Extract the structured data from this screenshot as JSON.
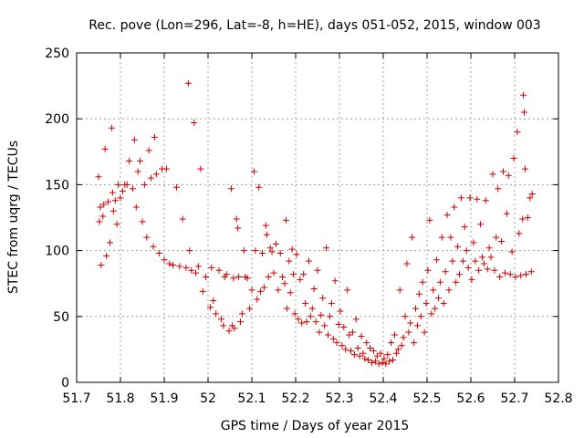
{
  "chart_data": {
    "type": "scatter",
    "title": "Rec. pove (Lon=296, Lat=-8, h=HE), days 051-052, 2015, window 003",
    "xlabel": "GPS time / Days of year 2015",
    "ylabel": "STEC from uqrg / TECUs",
    "xlim": [
      51.7,
      52.8
    ],
    "ylim": [
      0,
      250
    ],
    "x_ticks": [
      "51.7",
      "51.8",
      "51.9",
      "52",
      "52.1",
      "52.2",
      "52.3",
      "52.4",
      "52.5",
      "52.6",
      "52.7",
      "52.8"
    ],
    "y_ticks": [
      "0",
      "50",
      "100",
      "150",
      "200",
      "250"
    ],
    "grid": true,
    "marker": "+",
    "color": "#cc0000",
    "series": [
      {
        "points": [
          [
            51.75,
            156
          ],
          [
            51.752,
            122
          ],
          [
            51.754,
            133
          ],
          [
            51.756,
            89
          ],
          [
            51.76,
            126
          ],
          [
            51.762,
            135
          ],
          [
            51.765,
            177
          ],
          [
            51.768,
            96
          ],
          [
            51.772,
            137
          ],
          [
            51.776,
            106
          ],
          [
            51.78,
            193
          ],
          [
            51.782,
            144
          ],
          [
            51.784,
            130
          ],
          [
            51.788,
            138
          ],
          [
            51.792,
            120
          ],
          [
            51.795,
            150
          ],
          [
            51.8,
            140
          ],
          [
            51.805,
            145
          ],
          [
            51.81,
            150
          ],
          [
            51.815,
            150
          ],
          [
            51.82,
            168
          ],
          [
            51.828,
            147
          ],
          [
            51.832,
            184
          ],
          [
            51.836,
            133
          ],
          [
            51.84,
            160
          ],
          [
            51.845,
            168
          ],
          [
            51.85,
            122
          ],
          [
            51.855,
            150
          ],
          [
            51.86,
            110
          ],
          [
            51.865,
            176
          ],
          [
            51.87,
            155
          ],
          [
            51.875,
            103
          ],
          [
            51.878,
            186
          ],
          [
            51.882,
            158
          ],
          [
            51.888,
            98
          ],
          [
            51.895,
            162
          ],
          [
            51.9,
            93
          ],
          [
            51.905,
            162
          ],
          [
            51.912,
            90
          ],
          [
            51.92,
            89
          ],
          [
            51.928,
            148
          ],
          [
            51.935,
            88
          ],
          [
            51.942,
            124
          ],
          [
            51.95,
            87
          ],
          [
            51.955,
            227
          ],
          [
            51.958,
            100
          ],
          [
            51.962,
            85
          ],
          [
            51.968,
            197
          ],
          [
            51.972,
            83
          ],
          [
            51.978,
            88
          ],
          [
            51.983,
            162
          ],
          [
            51.988,
            69
          ],
          [
            51.995,
            80
          ],
          [
            52.005,
            57
          ],
          [
            52.008,
            87
          ],
          [
            52.012,
            62
          ],
          [
            52.018,
            52
          ],
          [
            52.025,
            85
          ],
          [
            52.03,
            48
          ],
          [
            52.035,
            43
          ],
          [
            52.038,
            80
          ],
          [
            52.042,
            82
          ],
          [
            52.048,
            39
          ],
          [
            52.053,
            147
          ],
          [
            52.055,
            43
          ],
          [
            52.058,
            79
          ],
          [
            52.06,
            41
          ],
          [
            52.065,
            124
          ],
          [
            52.068,
            117
          ],
          [
            52.07,
            80
          ],
          [
            52.074,
            46
          ],
          [
            52.078,
            52
          ],
          [
            52.082,
            100
          ],
          [
            52.085,
            80
          ],
          [
            52.09,
            79
          ],
          [
            52.095,
            56
          ],
          [
            52.1,
            70
          ],
          [
            52.105,
            160
          ],
          [
            52.108,
            100
          ],
          [
            52.112,
            63
          ],
          [
            52.116,
            148
          ],
          [
            52.12,
            69
          ],
          [
            52.124,
            98
          ],
          [
            52.128,
            72
          ],
          [
            52.132,
            119
          ],
          [
            52.134,
            112
          ],
          [
            52.138,
            80
          ],
          [
            52.142,
            102
          ],
          [
            52.146,
            99
          ],
          [
            52.15,
            83
          ],
          [
            52.155,
            105
          ],
          [
            52.16,
            70
          ],
          [
            52.165,
            98
          ],
          [
            52.17,
            80
          ],
          [
            52.175,
            75
          ],
          [
            52.178,
            123
          ],
          [
            52.18,
            56
          ],
          [
            52.185,
            92
          ],
          [
            52.188,
            68
          ],
          [
            52.192,
            101
          ],
          [
            52.195,
            82
          ],
          [
            52.198,
            52
          ],
          [
            52.202,
            97
          ],
          [
            52.206,
            48
          ],
          [
            52.21,
            78
          ],
          [
            52.214,
            45
          ],
          [
            52.218,
            82
          ],
          [
            52.222,
            60
          ],
          [
            52.225,
            46
          ],
          [
            52.23,
            92
          ],
          [
            52.234,
            50
          ],
          [
            52.238,
            56
          ],
          [
            52.242,
            71
          ],
          [
            52.246,
            46
          ],
          [
            52.25,
            85
          ],
          [
            52.254,
            38
          ],
          [
            52.258,
            51
          ],
          [
            52.262,
            64
          ],
          [
            52.266,
            43
          ],
          [
            52.27,
            102
          ],
          [
            52.274,
            36
          ],
          [
            52.278,
            50
          ],
          [
            52.282,
            60
          ],
          [
            52.286,
            33
          ],
          [
            52.29,
            77
          ],
          [
            52.294,
            30
          ],
          [
            52.298,
            44
          ],
          [
            52.302,
            54
          ],
          [
            52.306,
            28
          ],
          [
            52.31,
            42
          ],
          [
            52.314,
            25
          ],
          [
            52.318,
            70
          ],
          [
            52.322,
            36
          ],
          [
            52.326,
            24
          ],
          [
            52.33,
            38
          ],
          [
            52.334,
            21
          ],
          [
            52.338,
            48
          ],
          [
            52.342,
            26
          ],
          [
            52.346,
            20
          ],
          [
            52.35,
            35
          ],
          [
            52.354,
            22
          ],
          [
            52.358,
            18
          ],
          [
            52.362,
            30
          ],
          [
            52.366,
            17
          ],
          [
            52.37,
            26
          ],
          [
            52.374,
            15
          ],
          [
            52.378,
            24
          ],
          [
            52.382,
            16
          ],
          [
            52.386,
            20
          ],
          [
            52.39,
            14
          ],
          [
            52.394,
            22
          ],
          [
            52.398,
            15
          ],
          [
            52.402,
            18
          ],
          [
            52.406,
            14
          ],
          [
            52.41,
            21
          ],
          [
            52.414,
            16
          ],
          [
            52.418,
            30
          ],
          [
            52.422,
            17
          ],
          [
            52.426,
            36
          ],
          [
            52.43,
            22
          ],
          [
            52.434,
            25
          ],
          [
            52.438,
            70
          ],
          [
            52.442,
            28
          ],
          [
            52.446,
            34
          ],
          [
            52.45,
            50
          ],
          [
            52.454,
            90
          ],
          [
            52.458,
            38
          ],
          [
            52.462,
            45
          ],
          [
            52.466,
            110
          ],
          [
            52.47,
            30
          ],
          [
            52.474,
            56
          ],
          [
            52.478,
            43
          ],
          [
            52.482,
            67
          ],
          [
            52.486,
            50
          ],
          [
            52.49,
            76
          ],
          [
            52.494,
            38
          ],
          [
            52.498,
            60
          ],
          [
            52.502,
            85
          ],
          [
            52.506,
            123
          ],
          [
            52.51,
            52
          ],
          [
            52.514,
            70
          ],
          [
            52.518,
            56
          ],
          [
            52.522,
            93
          ],
          [
            52.526,
            64
          ],
          [
            52.53,
            76
          ],
          [
            52.534,
            110
          ],
          [
            52.538,
            60
          ],
          [
            52.542,
            84
          ],
          [
            52.546,
            127
          ],
          [
            52.55,
            70
          ],
          [
            52.554,
            110
          ],
          [
            52.558,
            92
          ],
          [
            52.562,
            133
          ],
          [
            52.566,
            76
          ],
          [
            52.57,
            103
          ],
          [
            52.574,
            82
          ],
          [
            52.578,
            140
          ],
          [
            52.582,
            92
          ],
          [
            52.586,
            118
          ],
          [
            52.59,
            100
          ],
          [
            52.594,
            87
          ],
          [
            52.598,
            140
          ],
          [
            52.602,
            78
          ],
          [
            52.606,
            106
          ],
          [
            52.61,
            92
          ],
          [
            52.614,
            139
          ],
          [
            52.618,
            85
          ],
          [
            52.622,
            120
          ],
          [
            52.626,
            95
          ],
          [
            52.63,
            90
          ],
          [
            52.634,
            138
          ],
          [
            52.638,
            86
          ],
          [
            52.642,
            102
          ],
          [
            52.646,
            95
          ],
          [
            52.65,
            158
          ],
          [
            52.654,
            85
          ],
          [
            52.658,
            110
          ],
          [
            52.662,
            147
          ],
          [
            52.666,
            80
          ],
          [
            52.67,
            107
          ],
          [
            52.674,
            160
          ],
          [
            52.678,
            83
          ],
          [
            52.682,
            128
          ],
          [
            52.686,
            157
          ],
          [
            52.69,
            82
          ],
          [
            52.694,
            99
          ],
          [
            52.698,
            170
          ],
          [
            52.702,
            80
          ],
          [
            52.706,
            190
          ],
          [
            52.71,
            113
          ],
          [
            52.714,
            81
          ],
          [
            52.718,
            124
          ],
          [
            52.72,
            218
          ],
          [
            52.722,
            205
          ],
          [
            52.724,
            162
          ],
          [
            52.726,
            82
          ],
          [
            52.73,
            125
          ],
          [
            52.735,
            140
          ],
          [
            52.738,
            84
          ],
          [
            52.74,
            143
          ]
        ]
      }
    ]
  }
}
